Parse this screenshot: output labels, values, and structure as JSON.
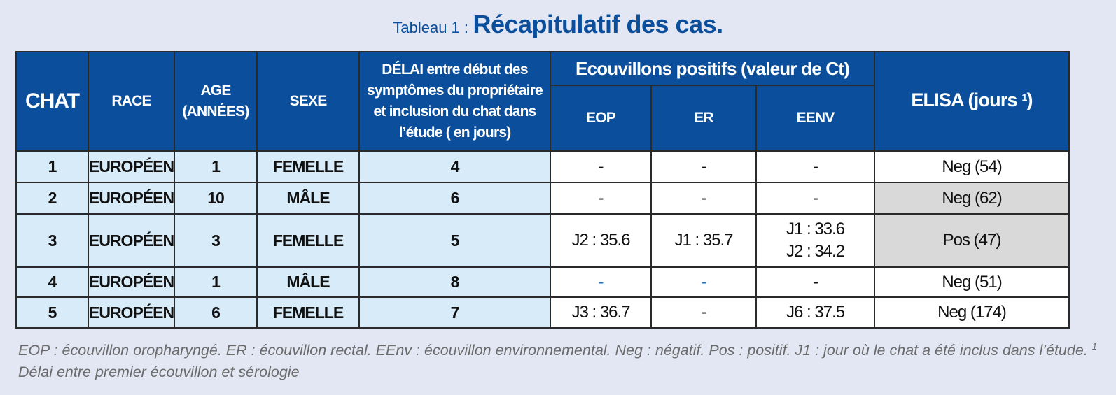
{
  "title": {
    "prefix": "Tableau 1 :",
    "main": "Récapitulatif des cas."
  },
  "table": {
    "headers": {
      "chat": "CHAT",
      "race": "RACE",
      "age_line1": "AGE",
      "age_line2": "(ANNÉES)",
      "sexe": "SEXE",
      "delai_lines": [
        "DÉLAI entre début des",
        "symptômes du propriétaire",
        "et inclusion du chat dans",
        "l’étude ( en jours)"
      ],
      "ecouvillons_group": "Ecouvillons positifs (valeur de Ct)",
      "eop": "EOP",
      "er": "ER",
      "eenv": "EENV",
      "elisa": "ELISA (jours ",
      "elisa_sup": "1",
      "elisa_close": ")"
    },
    "rows": [
      {
        "chat": "1",
        "race": "EUROPÉEN",
        "age": "1",
        "sexe": "FEMELLE",
        "delai": "4",
        "eop": "-",
        "er": "-",
        "eenv": [
          "-"
        ],
        "elisa": "Neg (54)"
      },
      {
        "chat": "2",
        "race": "EUROPÉEN",
        "age": "10",
        "sexe": "MÂLE",
        "delai": "6",
        "eop": "-",
        "er": "-",
        "eenv": [
          "-"
        ],
        "elisa": "Neg (62)"
      },
      {
        "chat": "3",
        "race": "EUROPÉEN",
        "age": "3",
        "sexe": "FEMELLE",
        "delai": "5",
        "eop": "J2 : 35.6",
        "er": "J1 : 35.7",
        "eenv": [
          "J1 : 33.6",
          "J2 : 34.2"
        ],
        "elisa": "Pos (47)"
      },
      {
        "chat": "4",
        "race": "EUROPÉEN",
        "age": "1",
        "sexe": "MÂLE",
        "delai": "8",
        "eop": "-",
        "er": "-",
        "eenv": [
          "-"
        ],
        "elisa": "Neg (51)"
      },
      {
        "chat": "5",
        "race": "EUROPÉEN",
        "age": "6",
        "sexe": "FEMELLE",
        "delai": "7",
        "eop": "J3 : 36.7",
        "er": "-",
        "eenv": [
          "J6 : 37.5"
        ],
        "elisa": "Neg (174)"
      }
    ]
  },
  "footnote": {
    "line1": "EOP : écouvillon oropharyngé. ER : écouvillon rectal. EEnv : écouvillon environnemental. Neg : négatif. Pos : positif. J1 : jour où le chat a été inclus",
    "line2_text": "dans l’étude. ",
    "line2_sup": "1",
    "line2_rest": " Délai entre premier écouvillon et sérologie"
  },
  "colors": {
    "header_bg": "#0b4f9c",
    "light_blue_cell": "#d7ebf9",
    "grey_cell": "#d9d9d9",
    "background": "#e3e7f3"
  }
}
